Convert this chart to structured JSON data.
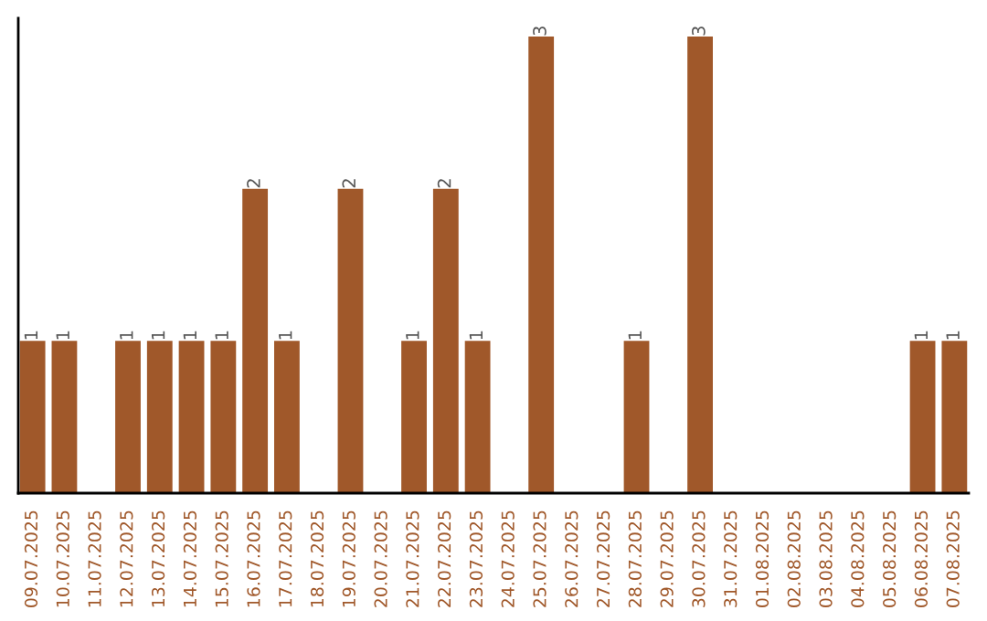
{
  "chart_data": {
    "type": "bar",
    "categories": [
      "09.07.2025",
      "10.07.2025",
      "11.07.2025",
      "12.07.2025",
      "13.07.2025",
      "14.07.2025",
      "15.07.2025",
      "16.07.2025",
      "17.07.2025",
      "18.07.2025",
      "19.07.2025",
      "20.07.2025",
      "21.07.2025",
      "22.07.2025",
      "23.07.2025",
      "24.07.2025",
      "25.07.2025",
      "26.07.2025",
      "27.07.2025",
      "28.07.2025",
      "29.07.2025",
      "30.07.2025",
      "31.07.2025",
      "01.08.2025",
      "02.08.2025",
      "03.08.2025",
      "04.08.2025",
      "05.08.2025",
      "06.08.2025",
      "07.08.2025"
    ],
    "values": [
      1,
      1,
      0,
      1,
      1,
      1,
      1,
      2,
      1,
      0,
      2,
      0,
      1,
      2,
      1,
      0,
      3,
      0,
      0,
      1,
      0,
      3,
      0,
      0,
      0,
      0,
      0,
      0,
      1,
      1
    ],
    "value_labels": [
      "1",
      "1",
      null,
      "1",
      "1",
      "1",
      "1",
      "2",
      "1",
      null,
      "2",
      null,
      "1",
      "2",
      "1",
      null,
      "3",
      null,
      null,
      "1",
      null,
      "3",
      null,
      null,
      null,
      null,
      null,
      null,
      "1",
      "1"
    ],
    "color": "#a0582a",
    "tick_labels": "x",
    "grid": false,
    "legend": false
  }
}
